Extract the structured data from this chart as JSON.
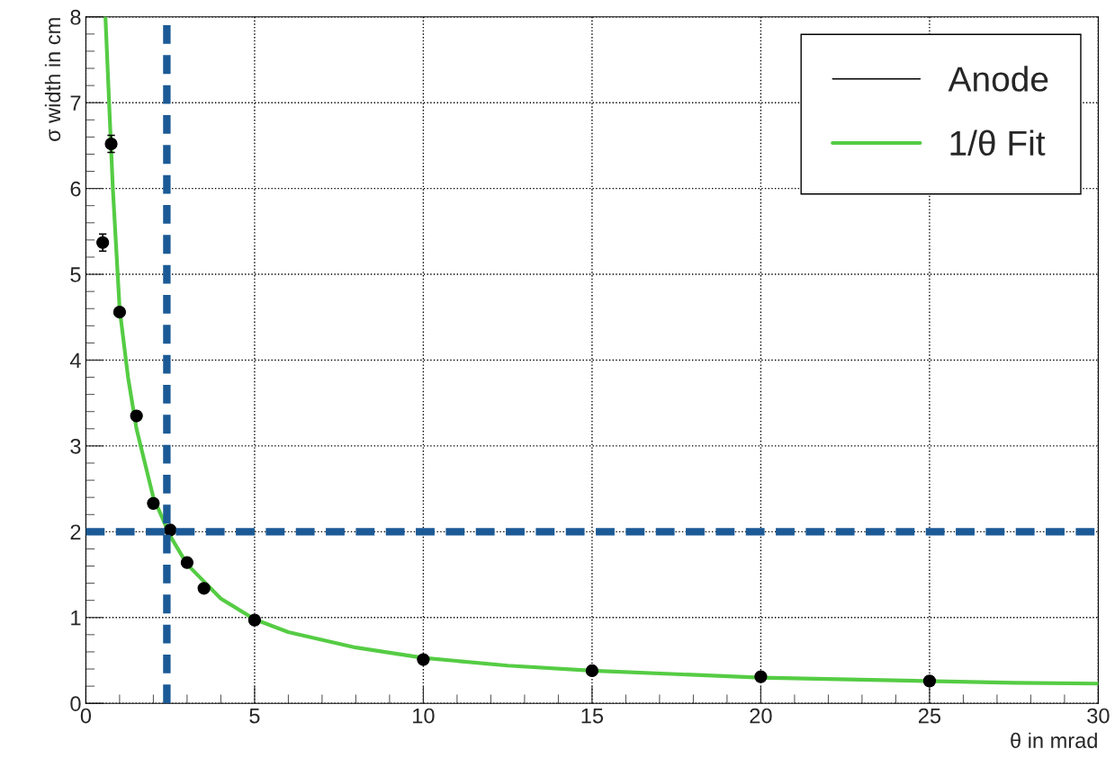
{
  "chart_data": {
    "type": "scatter",
    "xlabel": "θ in mrad",
    "ylabel": "σ width in cm",
    "xlim": [
      0,
      30
    ],
    "ylim": [
      0,
      8
    ],
    "xticks": [
      0,
      5,
      10,
      15,
      20,
      25,
      30
    ],
    "yticks": [
      0,
      1,
      2,
      3,
      4,
      5,
      6,
      7,
      8
    ],
    "grid": true,
    "legend": "top right",
    "marker": "circle",
    "series": [
      {
        "name": "Anode",
        "color": "#000000",
        "x": [
          0.5,
          0.75,
          1.0,
          1.5,
          2.0,
          2.5,
          3.0,
          3.5,
          5,
          10,
          15,
          20,
          25
        ],
        "values": [
          5.37,
          6.52,
          4.56,
          3.35,
          2.33,
          2.02,
          1.64,
          1.34,
          0.97,
          0.51,
          0.38,
          0.31,
          0.26
        ],
        "errors": [
          0.1,
          0.1,
          null,
          null,
          null,
          null,
          null,
          null,
          null,
          null,
          null,
          null,
          null
        ]
      },
      {
        "name": "1/θ Fit",
        "type": "line",
        "marker": "none",
        "color": "#55cc44",
        "x": [
          0.58,
          0.7,
          0.8,
          1,
          1.25,
          1.5,
          2,
          2.5,
          3,
          4,
          5,
          6,
          8,
          10,
          12.5,
          15,
          20,
          27.5,
          30
        ],
        "values": [
          8.0,
          6.9,
          6.0,
          4.6,
          3.8,
          3.2,
          2.4,
          1.95,
          1.62,
          1.22,
          0.98,
          0.83,
          0.65,
          0.53,
          0.44,
          0.38,
          0.3,
          0.24,
          0.23
        ]
      }
    ],
    "ref_lines": [
      {
        "axis": "x",
        "value": 2.4,
        "color": "#1b5a96",
        "line_style": "dashed"
      },
      {
        "axis": "y",
        "value": 2,
        "color": "#1b5a96",
        "line_style": "dashed"
      }
    ]
  }
}
